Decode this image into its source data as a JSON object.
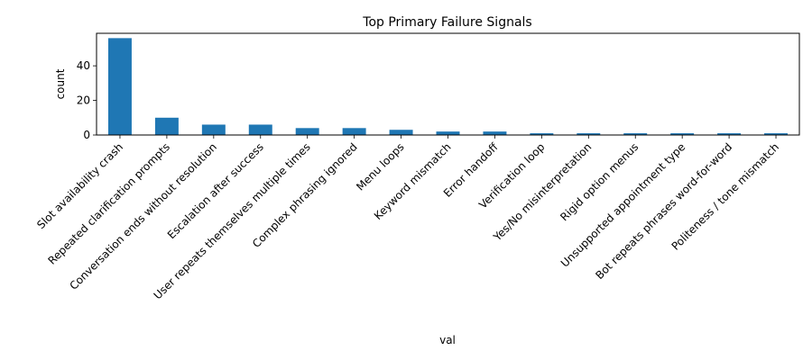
{
  "chart_data": {
    "type": "bar",
    "title": "Top Primary Failure Signals",
    "xlabel": "val",
    "ylabel": "count",
    "categories": [
      "Slot availability crash",
      "Repeated clarification prompts",
      "Conversation ends without resolution",
      "Escalation after success",
      "User repeats themselves multiple times",
      "Complex phrasing ignored",
      "Menu loops",
      "Keyword mismatch",
      "Error handoff",
      "Verification loop",
      "Yes/No misinterpretation",
      "Rigid option menus",
      "Unsupported appointment type",
      "Bot repeats phrases word-for-word",
      "Politeness / tone mismatch"
    ],
    "values": [
      56,
      10,
      6,
      6,
      4,
      4,
      3,
      2,
      2,
      1,
      1,
      1,
      1,
      1,
      1
    ],
    "ylim": [
      0,
      58.8
    ],
    "yticks": [
      0,
      20,
      40
    ],
    "bar_color": "#1f77b4",
    "grid": false,
    "legend": "none"
  }
}
